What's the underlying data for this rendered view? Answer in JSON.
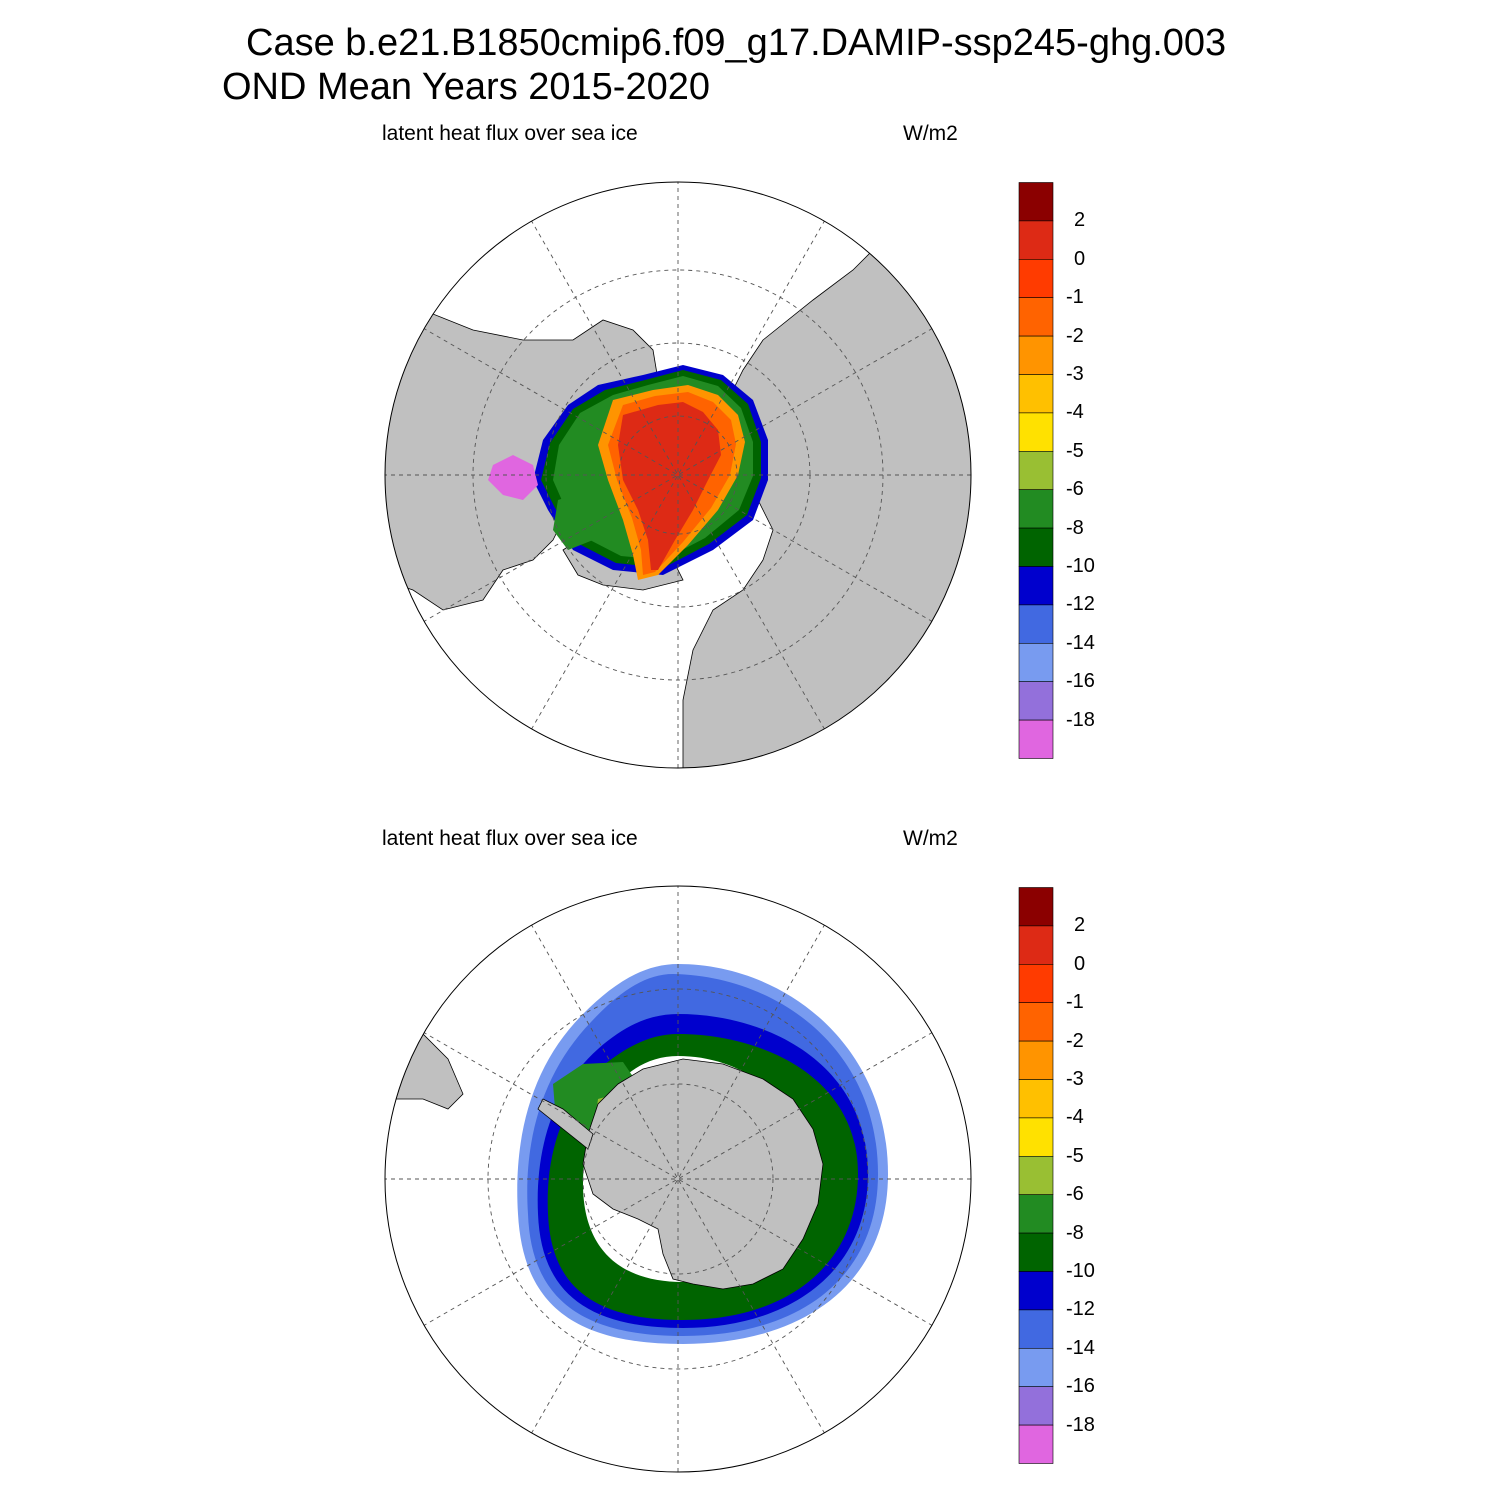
{
  "title": {
    "line1": "Case b.e21.B1850cmip6.f09_g17.DAMIP-ssp245-ghg.003",
    "line2": "OND Mean   Years 2015-2020"
  },
  "panels": [
    {
      "id": "north",
      "left_label": "latent heat flux over sea ice",
      "right_label": "W/m2",
      "hemisphere": "Northern"
    },
    {
      "id": "south",
      "left_label": "latent heat flux over sea ice",
      "right_label": "W/m2",
      "hemisphere": "Southern"
    }
  ],
  "colorbar": {
    "colors": [
      "#8b0000",
      "#dd2a15",
      "#ff3b00",
      "#ff6300",
      "#ff9400",
      "#ffc000",
      "#ffe100",
      "#99bf33",
      "#228b22",
      "#006400",
      "#0000cd",
      "#4169e1",
      "#789bf0",
      "#9370db",
      "#e066e0"
    ],
    "labels": [
      "2",
      "0",
      "-1",
      "-2",
      "-3",
      "-4",
      "-5",
      "-6",
      "-8",
      "-10",
      "-12",
      "-14",
      "-16",
      "-18"
    ]
  },
  "colors": {
    "land": "#c0c0c0",
    "grid": "#555555"
  }
}
